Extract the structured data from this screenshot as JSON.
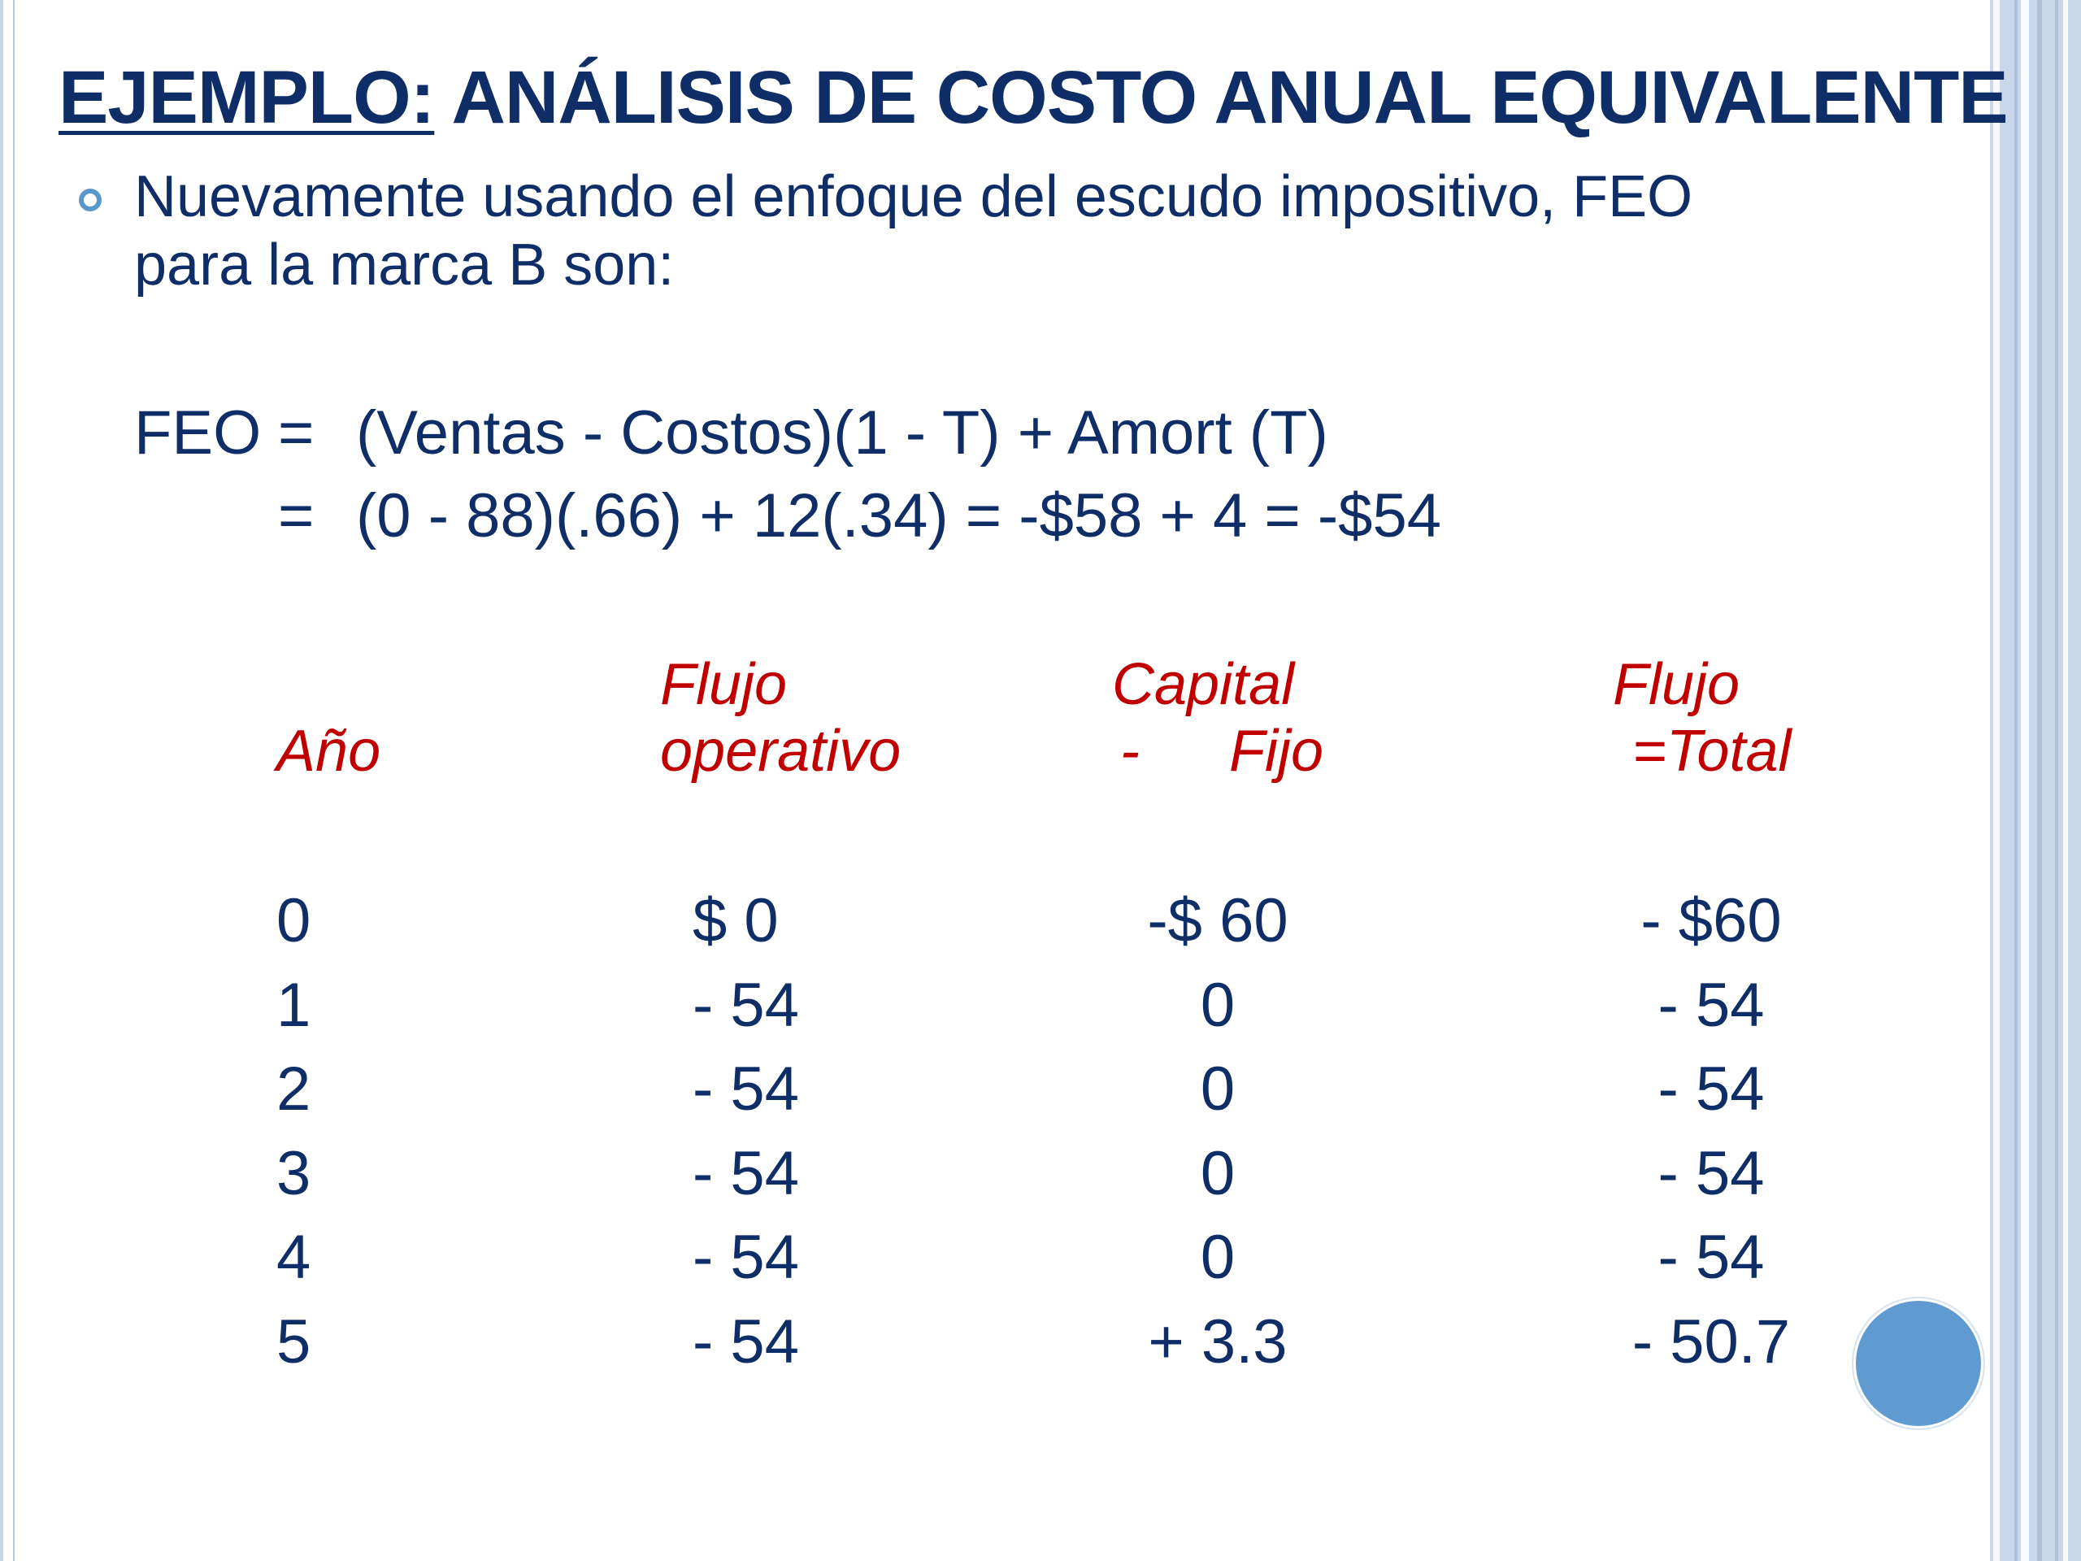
{
  "title": {
    "underlined": "EJEMPLO:",
    "rest": " ANÁLISIS DE COSTO ANUAL EQUIVALENTE"
  },
  "bullet": {
    "line1": "Nuevamente usando el enfoque del escudo impositivo, FEO",
    "line2": "para la marca B son:"
  },
  "formula": {
    "lhs": "FEO",
    "eq1": "=",
    "rhs1": "(Ventas - Costos)(1 - T) + Amort (T)",
    "eq2": "=",
    "rhs2": "(0 - 88)(.66) + 12(.34) = -$58 + 4 = -$54"
  },
  "table": {
    "headers": {
      "year": "Año",
      "op_flow_top": "Flujo",
      "op_flow_bottom": "operativo",
      "capital_top": "Capital",
      "capital_minus": "-",
      "capital_bottom": "Fijo",
      "total_top": "Flujo",
      "total_bottom": "=Total"
    },
    "rows": [
      {
        "year": "0",
        "op": "$ 0",
        "cap": "-$ 60",
        "total": "- $60"
      },
      {
        "year": "1",
        "op": "- 54",
        "cap": "0",
        "total": "- 54"
      },
      {
        "year": "2",
        "op": "- 54",
        "cap": "0",
        "total": "- 54"
      },
      {
        "year": "3",
        "op": "- 54",
        "cap": "0",
        "total": "- 54"
      },
      {
        "year": "4",
        "op": "- 54",
        "cap": "0",
        "total": "- 54"
      },
      {
        "year": "5",
        "op": "- 54",
        "cap": "+ 3.3",
        "total": "- 50.7"
      }
    ]
  },
  "colors": {
    "title": "#0f2d66",
    "header_red": "#c00000",
    "accent_blue": "#5f9bd0"
  }
}
